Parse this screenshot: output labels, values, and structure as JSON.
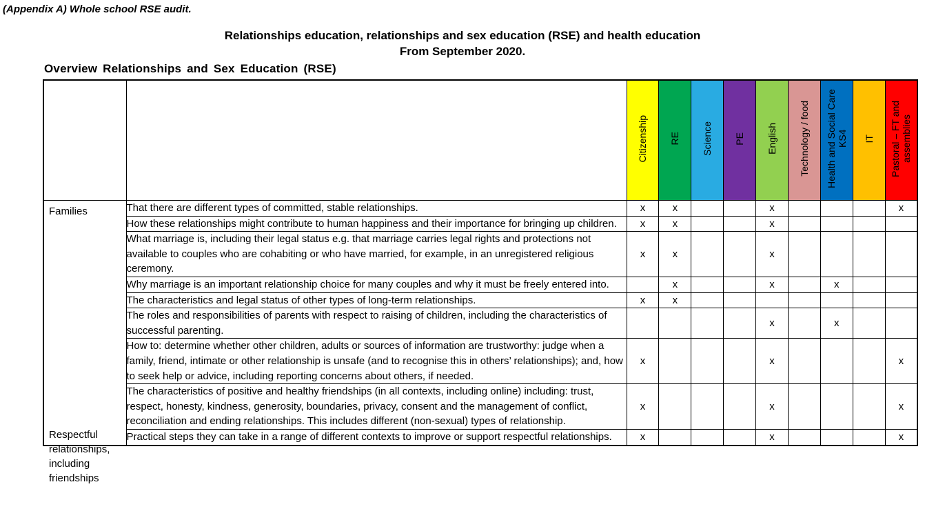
{
  "page": {
    "appendix_note": "(Appendix A) Whole school RSE audit.",
    "title_line1": "Relationships education, relationships and sex education (RSE) and health education",
    "title_line2": "From September 2020.",
    "section_heading": "Overview Relationships and Sex Education (RSE)"
  },
  "table": {
    "columns": [
      {
        "label": "Citizenship",
        "color": "#FFFF00"
      },
      {
        "label": "RE",
        "color": "#00A651"
      },
      {
        "label": "Science",
        "color": "#29ABE2"
      },
      {
        "label": "PE",
        "color": "#7030A0"
      },
      {
        "label": "English",
        "color": "#92D050"
      },
      {
        "label": "Technology / food",
        "color": "#D99694"
      },
      {
        "label": "Health and Social Care KS4",
        "color": "#0070C0"
      },
      {
        "label": "IT",
        "color": "#FFC000"
      },
      {
        "label": "Pastoral – FT and assemblies",
        "color": "#FF0000"
      }
    ],
    "categories": [
      {
        "label": "Families"
      },
      {
        "label": "Respectful relationships, including friendships"
      }
    ],
    "rows": [
      {
        "statement": "That there are different types of committed, stable relationships.",
        "marks": [
          "x",
          "x",
          "",
          "",
          "x",
          "",
          "",
          "",
          "x"
        ]
      },
      {
        "statement": "How these relationships might contribute to human happiness and their importance for bringing up children.",
        "marks": [
          "x",
          "x",
          "",
          "",
          "x",
          "",
          "",
          "",
          ""
        ]
      },
      {
        "statement": "What marriage is, including their legal status e.g. that marriage carries legal rights and protections not available to couples who are cohabiting or who have married, for example, in an unregistered religious ceremony.",
        "marks": [
          "x",
          "x",
          "",
          "",
          "x",
          "",
          "",
          "",
          ""
        ]
      },
      {
        "statement": "Why marriage is an important relationship choice for many couples and why it must be freely entered into.",
        "marks": [
          "",
          "x",
          "",
          "",
          "x",
          "",
          "x",
          "",
          ""
        ]
      },
      {
        "statement": "The characteristics and legal status of other types of long-term relationships.",
        "marks": [
          "x",
          "x",
          "",
          "",
          "",
          "",
          "",
          "",
          ""
        ]
      },
      {
        "statement": "The roles and responsibilities of parents with respect to raising of children, including the characteristics of successful parenting.",
        "marks": [
          "",
          "",
          "",
          "",
          "x",
          "",
          "x",
          "",
          ""
        ]
      },
      {
        "statement": "How to: determine whether other children, adults or sources of information are trustworthy: judge when a family, friend, intimate or other relationship is unsafe (and to recognise this in others’ relationships); and, how to seek help or advice, including reporting concerns about others, if needed.",
        "marks": [
          "x",
          "",
          "",
          "",
          "x",
          "",
          "",
          "",
          "x"
        ]
      },
      {
        "statement": "The characteristics of positive and healthy friendships (in all contexts, including online) including: trust, respect, honesty, kindness, generosity, boundaries, privacy, consent and the management of conflict, reconciliation and ending relationships. This includes different (non-sexual) types of relationship.",
        "marks": [
          "x",
          "",
          "",
          "",
          "x",
          "",
          "",
          "",
          "x"
        ]
      },
      {
        "statement": "Practical steps they can take in a range of different contexts to improve or support respectful relationships.",
        "marks": [
          "x",
          "",
          "",
          "",
          "x",
          "",
          "",
          "",
          "x"
        ]
      }
    ]
  }
}
